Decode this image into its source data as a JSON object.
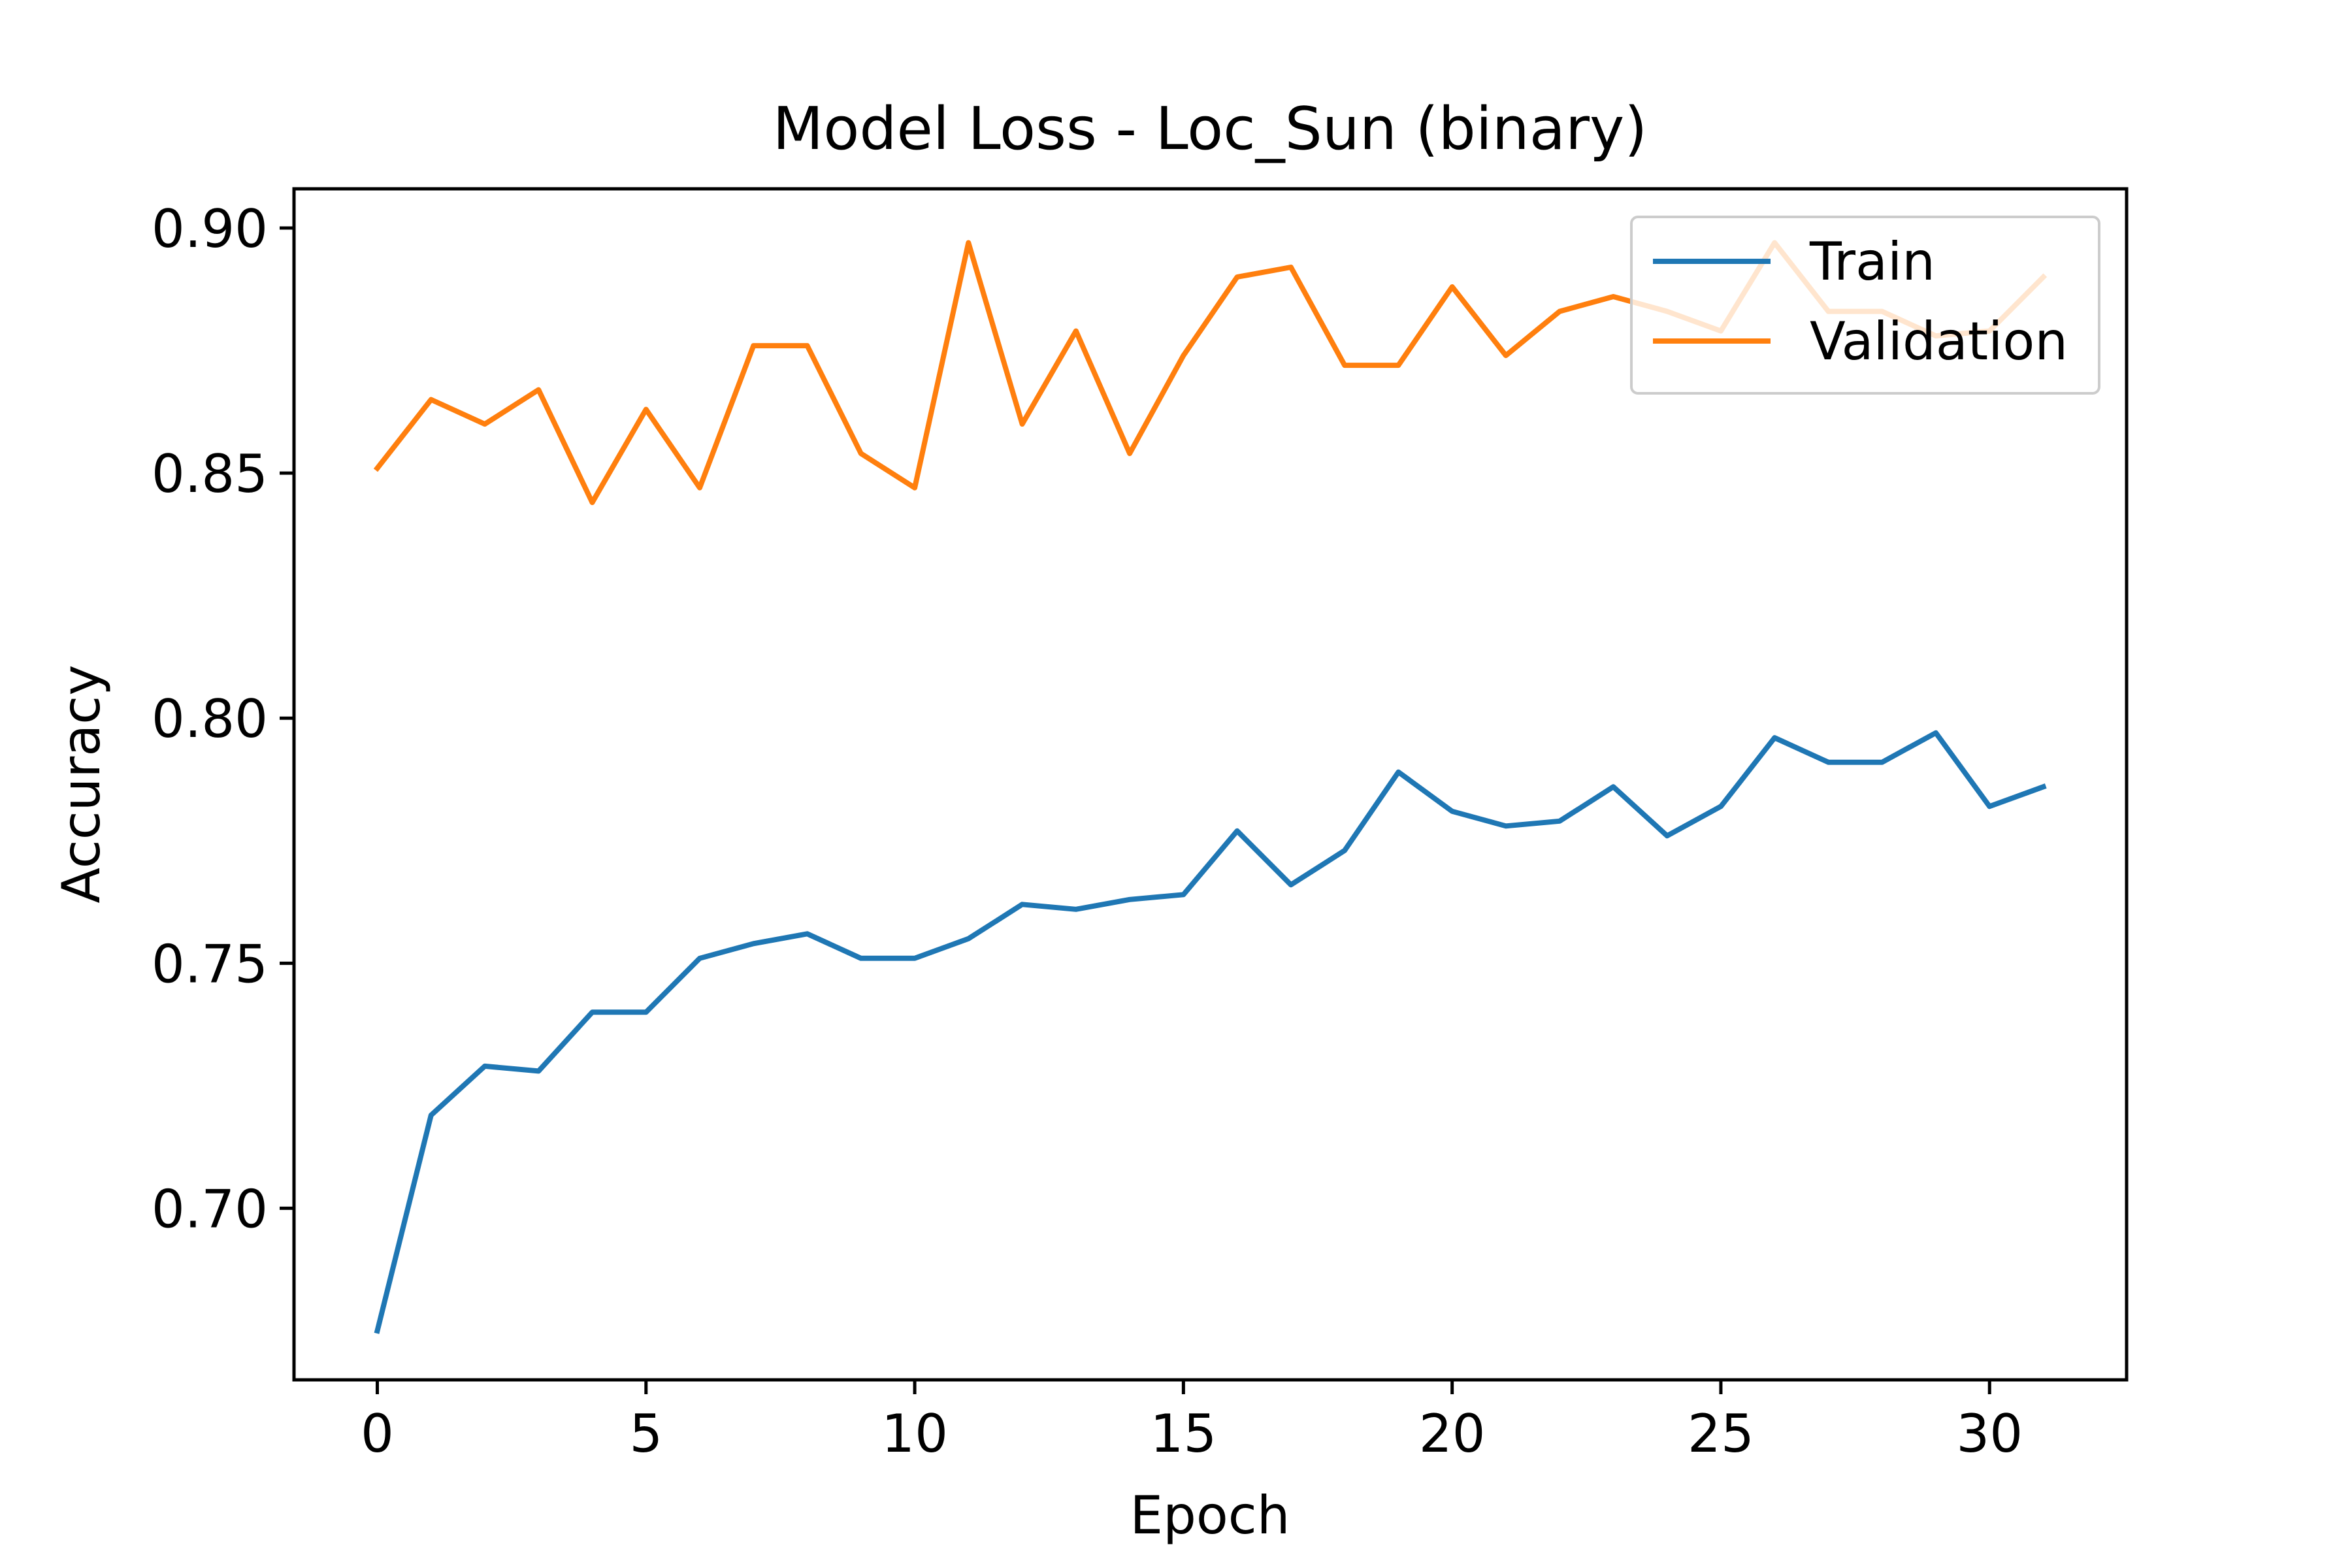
{
  "chart_data": {
    "type": "line",
    "title": "Model Loss - Loc_Sun (binary)",
    "xlabel": "Epoch",
    "ylabel": "Accuracy",
    "xlim": [
      -1.55,
      32.55
    ],
    "ylim": [
      0.665,
      0.908
    ],
    "xticks": [
      0,
      5,
      10,
      15,
      20,
      25,
      30
    ],
    "yticks": [
      0.7,
      0.75,
      0.8,
      0.85,
      0.9
    ],
    "xtick_labels": [
      "0",
      "5",
      "10",
      "15",
      "20",
      "25",
      "30"
    ],
    "ytick_labels": [
      "0.70",
      "0.75",
      "0.80",
      "0.85",
      "0.90"
    ],
    "grid": false,
    "legend_position": "top-right",
    "x": [
      0,
      1,
      2,
      3,
      4,
      5,
      6,
      7,
      8,
      9,
      10,
      11,
      12,
      13,
      14,
      15,
      16,
      17,
      18,
      19,
      20,
      21,
      22,
      23,
      24,
      25,
      26,
      27,
      28,
      29,
      30,
      31
    ],
    "series": [
      {
        "name": "Train",
        "color": "#1f77b4",
        "values": [
          0.675,
          0.719,
          0.729,
          0.728,
          0.74,
          0.74,
          0.751,
          0.754,
          0.756,
          0.751,
          0.751,
          0.755,
          0.762,
          0.761,
          0.763,
          0.764,
          0.777,
          0.766,
          0.773,
          0.789,
          0.781,
          0.778,
          0.779,
          0.786,
          0.776,
          0.782,
          0.796,
          0.791,
          0.791,
          0.797,
          0.782,
          0.786
        ]
      },
      {
        "name": "Validation",
        "color": "#ff7f0e",
        "values": [
          0.851,
          0.865,
          0.86,
          0.867,
          0.844,
          0.863,
          0.847,
          0.876,
          0.876,
          0.854,
          0.847,
          0.897,
          0.86,
          0.879,
          0.854,
          0.874,
          0.89,
          0.892,
          0.872,
          0.872,
          0.888,
          0.874,
          0.883,
          0.886,
          0.883,
          0.879,
          0.897,
          0.883,
          0.883,
          0.878,
          0.879,
          0.89
        ]
      }
    ]
  }
}
